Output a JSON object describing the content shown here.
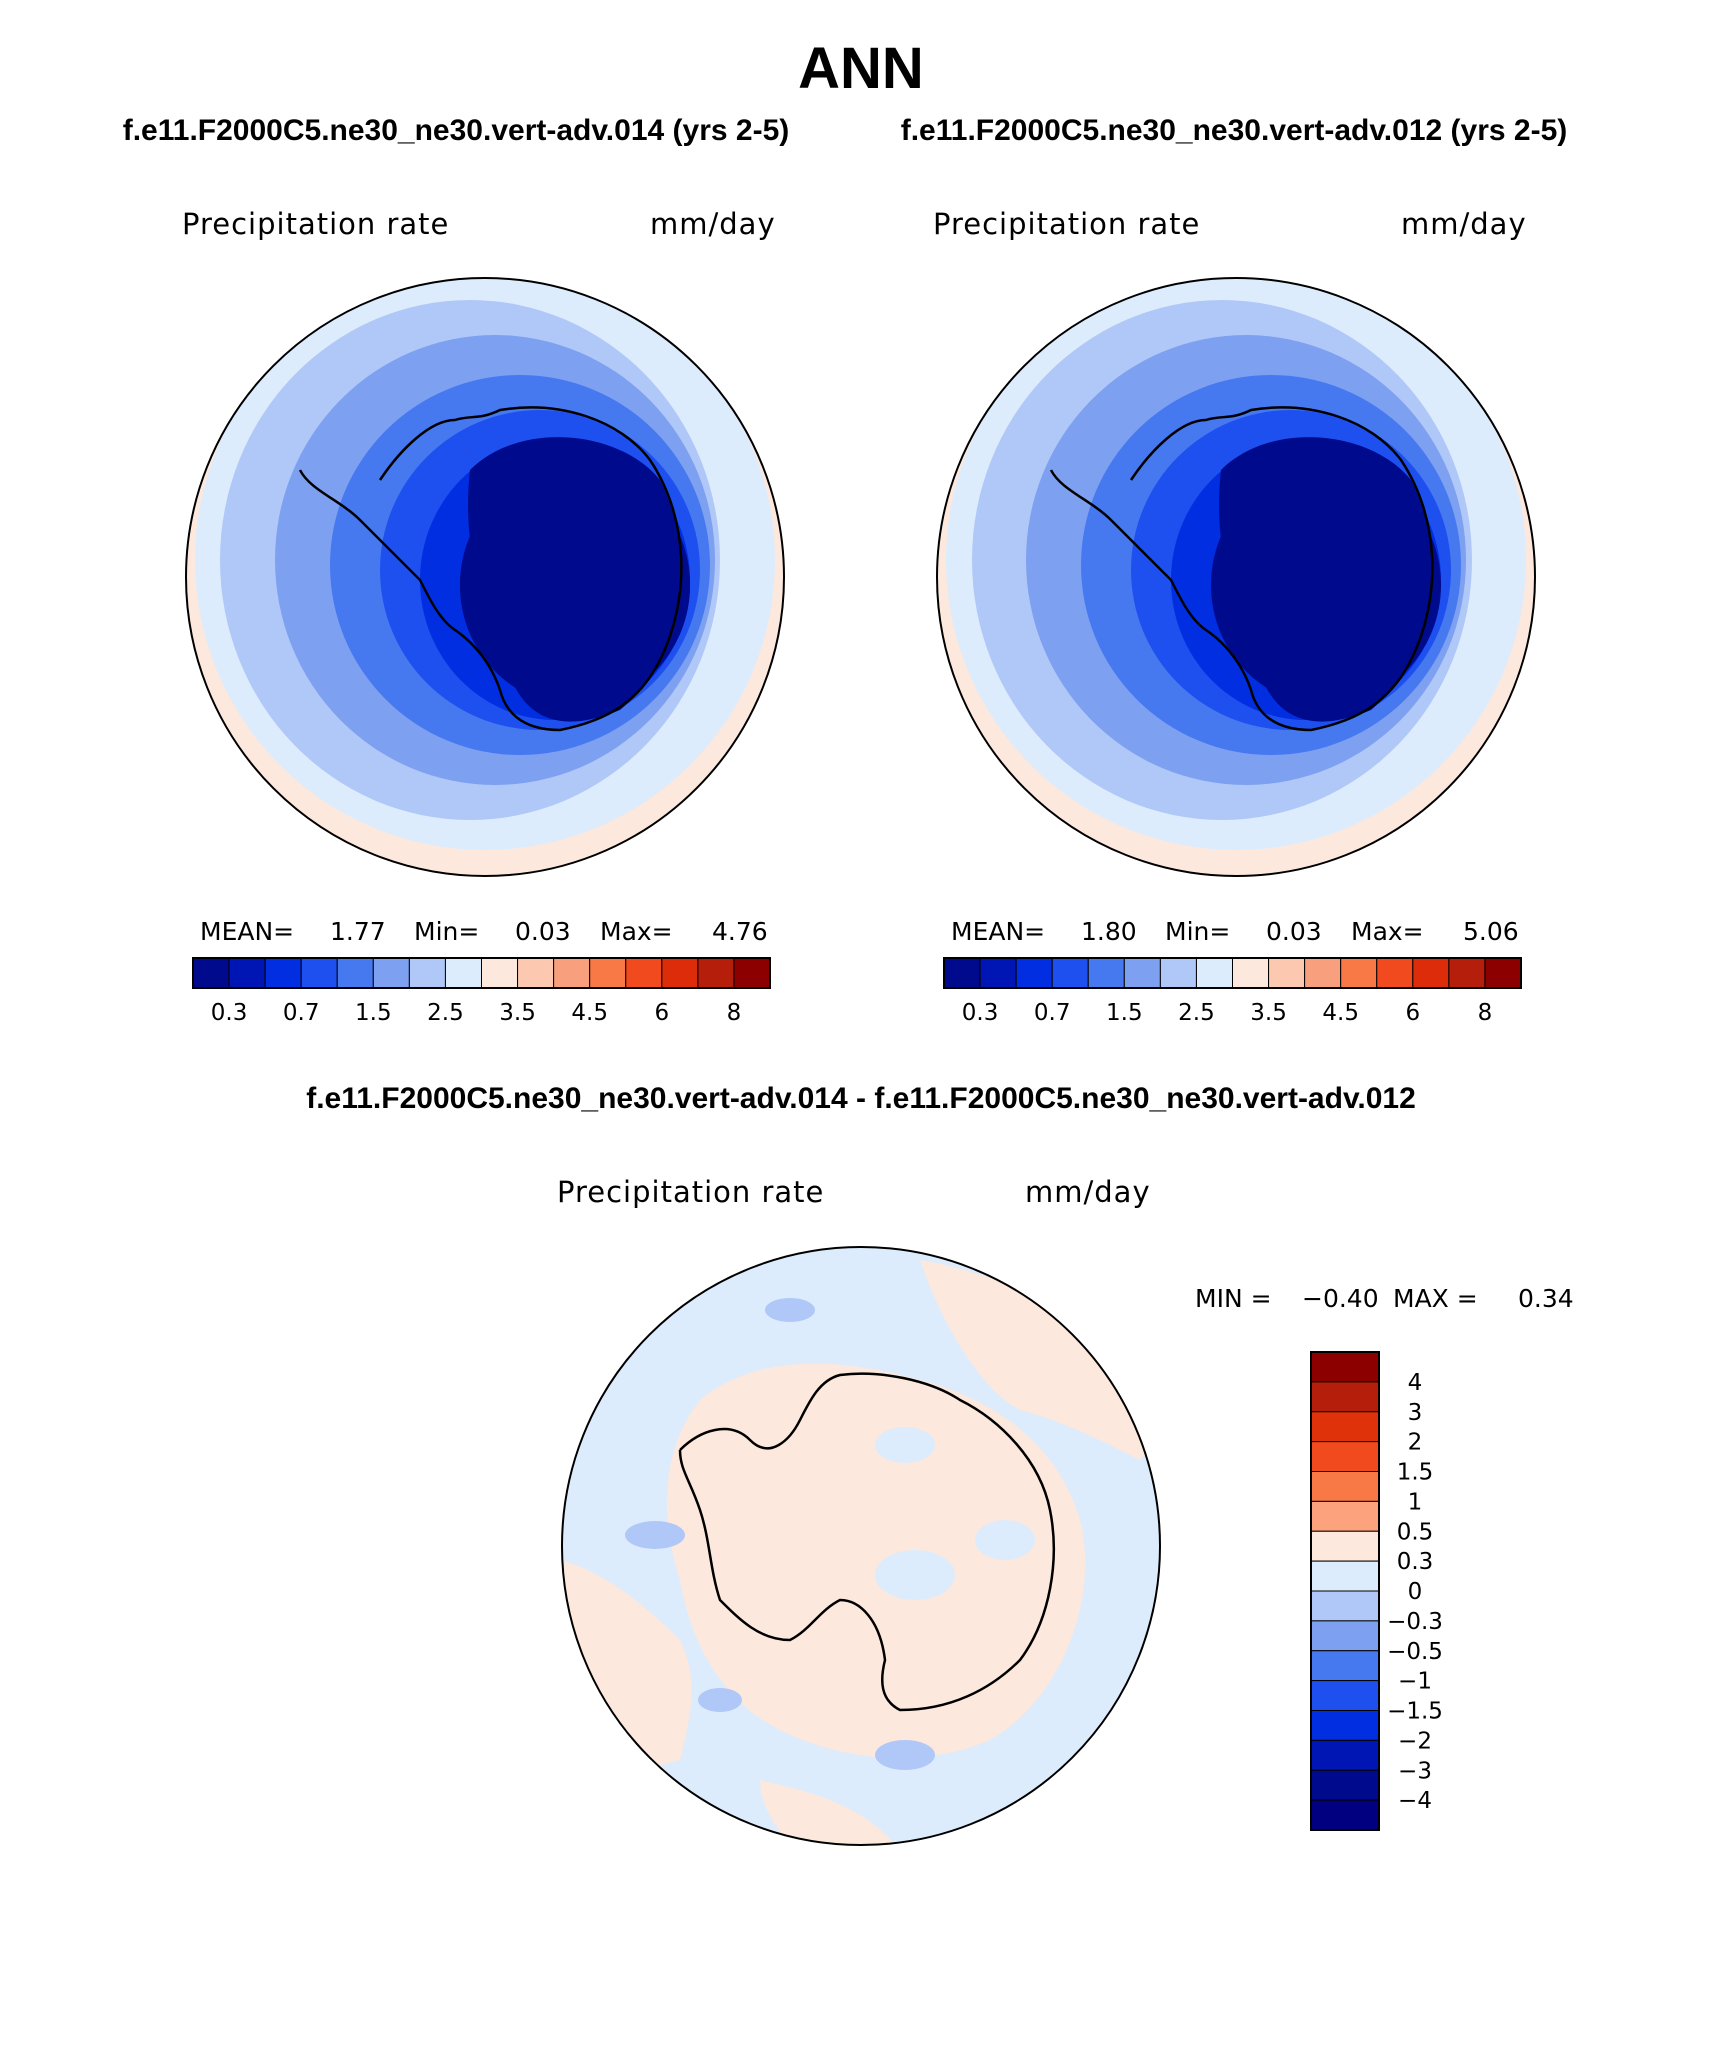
{
  "title": "ANN",
  "panels": [
    {
      "heading": "f.e11.F2000C5.ne30_ne30.vert-adv.014 (yrs 2-5)",
      "variable": "Precipitation rate",
      "units": "mm/day",
      "stats": {
        "mean_label": "MEAN=",
        "mean": "1.77",
        "min_label": "Min=",
        "min": "0.03",
        "max_label": "Max=",
        "max": "4.76"
      }
    },
    {
      "heading": "f.e11.F2000C5.ne30_ne30.vert-adv.012 (yrs 2-5)",
      "variable": "Precipitation rate",
      "units": "mm/day",
      "stats": {
        "mean_label": "MEAN=",
        "mean": "1.80",
        "min_label": "Min=",
        "min": "0.03",
        "max_label": "Max=",
        "max": "5.06"
      }
    }
  ],
  "diff_panel": {
    "heading": "f.e11.F2000C5.ne30_ne30.vert-adv.014 - f.e11.F2000C5.ne30_ne30.vert-adv.012",
    "variable": "Precipitation rate",
    "units": "mm/day",
    "stats": {
      "min_label": "MIN =",
      "min": "−0.40",
      "max_label": "MAX =",
      "max": "0.34"
    }
  },
  "colorbar_abs": {
    "colors": [
      "#000a8c",
      "#0016b4",
      "#002ee0",
      "#1e50f0",
      "#4678f0",
      "#7ea0f0",
      "#b0c8f8",
      "#dcecfc",
      "#fce8dc",
      "#fcc8b0",
      "#f8a07e",
      "#f87846",
      "#f04a1e",
      "#dc2c0a",
      "#b41e0a",
      "#8c0000"
    ],
    "labels": [
      "0.3",
      "0.7",
      "1.5",
      "2.5",
      "3.5",
      "4.5",
      "6",
      "8"
    ]
  },
  "colorbar_diff": {
    "colors_top_to_bottom": [
      "#8c0000",
      "#b41e0a",
      "#e0320a",
      "#f04a1e",
      "#f87846",
      "#fca37e",
      "#fce8dc",
      "#dcecfc",
      "#b0c8f8",
      "#7ea0f0",
      "#4678f0",
      "#1e50f0",
      "#002ee0",
      "#0016b4",
      "#000a8c",
      "#000080"
    ],
    "labels": [
      "4",
      "3",
      "2",
      "1.5",
      "1",
      "0.5",
      "0.3",
      "0",
      "−0.3",
      "−0.5",
      "−1",
      "−1.5",
      "−2",
      "−3",
      "−4"
    ]
  }
}
